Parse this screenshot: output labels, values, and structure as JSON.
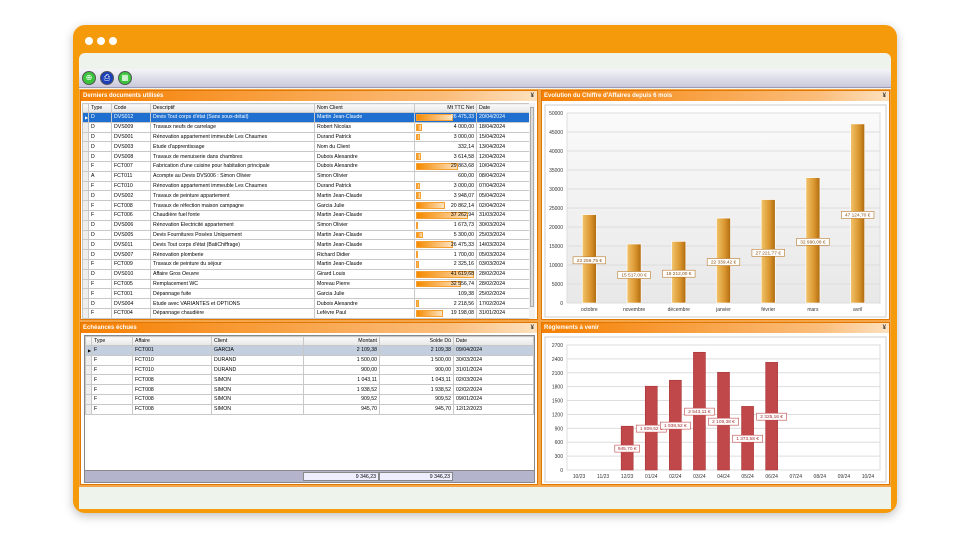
{
  "toolbar": {
    "icons": [
      "network-icon",
      "print-icon",
      "calculator-icon"
    ]
  },
  "docs": {
    "title": "Derniers documents utilisés",
    "columns": [
      "Type",
      "Code",
      "Descriptif",
      "Nom Client",
      "Mt TTC Net",
      "Date"
    ],
    "rows": [
      [
        "D",
        "DVS012",
        "Devis Tout corps d'état (Sans sous-détail)",
        "Martin Jean-Claude",
        "26 475,33",
        "20/04/2024"
      ],
      [
        "D",
        "DVS009",
        "Travaux neufs de carrelage",
        "Robert Nicolas",
        "4 000,00",
        "18/04/2024"
      ],
      [
        "D",
        "DVS001",
        "Rénovation appartement immeuble Les Chaumes",
        "Durand Patrick",
        "3 000,00",
        "15/04/2024"
      ],
      [
        "D",
        "DVS003",
        "Etude d'apprentissage",
        "Nom du Client",
        "332,14",
        "13/04/2024"
      ],
      [
        "D",
        "DVS008",
        "Travaux de menuiserie dans chambres",
        "Dubois Alexandre",
        "3 614,58",
        "12/04/2024"
      ],
      [
        "F",
        "FCT007",
        "Fabrication d'une cuisine pour habitation principale",
        "Dubois Alexandre",
        "29 863,68",
        "10/04/2024"
      ],
      [
        "A",
        "FCT011",
        "Acompte au Devis DVS006 : Simon Olivier",
        "Simon Olivier",
        "600,00",
        "08/04/2024"
      ],
      [
        "F",
        "FCT010",
        "Rénovation appartement immeuble Les Chaumes",
        "Durand Patrick",
        "3 000,00",
        "07/04/2024"
      ],
      [
        "D",
        "DVS002",
        "Travaux de peinture appartement",
        "Martin Jean-Claude",
        "3 948,07",
        "05/04/2024"
      ],
      [
        "F",
        "FCT008",
        "Travaux de réfection maison campagne",
        "Garcia Julie",
        "20 862,14",
        "02/04/2024"
      ],
      [
        "F",
        "FCT006",
        "Chaudière fuel fonte",
        "Martin Jean-Claude",
        "37 262,94",
        "31/03/2024"
      ],
      [
        "D",
        "DVS006",
        "Rénovation Electricité appartement",
        "Simon Olivier",
        "1 673,73",
        "30/03/2024"
      ],
      [
        "D",
        "DVS005",
        "Devis Fournitures Posées Uniquement",
        "Martin Jean-Claude",
        "5 300,00",
        "25/03/2024"
      ],
      [
        "D",
        "DVS011",
        "Devis Tout corps d'état (BatiChiffrage)",
        "Martin Jean-Claude",
        "26 475,33",
        "14/03/2024"
      ],
      [
        "D",
        "DVS007",
        "Rénovation plomberie",
        "Richard Didier",
        "1 700,00",
        "05/03/2024"
      ],
      [
        "F",
        "FCT009",
        "Travaux de peinture du séjour",
        "Martin Jean-Claude",
        "2 325,16",
        "03/03/2024"
      ],
      [
        "D",
        "DVS010",
        "Affaire Gros Oeuvre",
        "Girard Louis",
        "41 619,68",
        "28/02/2024"
      ],
      [
        "F",
        "FCT005",
        "Remplacement WC",
        "Moreau Pierre",
        "32 556,74",
        "28/02/2024"
      ],
      [
        "F",
        "FCT001",
        "Dépannage fuite",
        "Garcia Julie",
        "109,38",
        "25/02/2024"
      ],
      [
        "D",
        "DVS004",
        "Etude avec VARIANTES et OPTIONS",
        "Dubois Alexandre",
        "2 218,56",
        "17/02/2024"
      ],
      [
        "F",
        "FCT004",
        "Dépannage chaudière",
        "Lefèvre Paul",
        "19 198,08",
        "31/01/2024"
      ]
    ]
  },
  "echeances": {
    "title": "Echéances échues",
    "columns": [
      "Type",
      "Affaire",
      "Client",
      "Montant",
      "Solde Dû",
      "Date"
    ],
    "rows": [
      [
        "F",
        "FCT001",
        "GARCIA",
        "2 109,38",
        "2 109,38",
        "09/04/2024"
      ],
      [
        "F",
        "FCT010",
        "DURAND",
        "1 500,00",
        "1 500,00",
        "30/03/2024"
      ],
      [
        "F",
        "FCT010",
        "DURAND",
        "900,00",
        "900,00",
        "31/01/2024"
      ],
      [
        "F",
        "FCT008",
        "SIMON",
        "1 043,11",
        "1 043,11",
        "02/03/2024"
      ],
      [
        "F",
        "FCT008",
        "SIMON",
        "1 938,52",
        "1 938,52",
        "02/02/2024"
      ],
      [
        "F",
        "FCT008",
        "SIMON",
        "909,52",
        "909,52",
        "09/01/2024"
      ],
      [
        "F",
        "FCT008",
        "SIMON",
        "945,70",
        "945,70",
        "12/12/2023"
      ]
    ],
    "total_montant": "9 346,23",
    "total_solde": "9 346,23"
  },
  "chart_data": [
    {
      "type": "bar",
      "title": "Evolution du Chiffre d'Affaires depuis 6 mois",
      "color": "#d9952e",
      "categories": [
        "octobre",
        "novembre",
        "décembre",
        "janvier",
        "février",
        "mars",
        "avril"
      ],
      "values": [
        23259.75,
        15517.0,
        16212.0,
        22339.42,
        27221.77,
        32990.08,
        47124.7
      ],
      "labels": [
        "23 259,75 €",
        "15 517,00 €",
        "16 212,00 €",
        "22 339,42 €",
        "27 221,77 €",
        "32 990,08 €",
        "47 124,70 €"
      ],
      "ylim": [
        0,
        50000
      ],
      "yticks": [
        0,
        5000,
        10000,
        15000,
        20000,
        25000,
        30000,
        35000,
        40000,
        45000,
        50000
      ],
      "grid": true
    },
    {
      "type": "bar",
      "title": "Règlements à venir",
      "color": "#c0484a",
      "categories": [
        "10/23",
        "11/23",
        "12/23",
        "01/24",
        "02/24",
        "03/24",
        "04/24",
        "05/24",
        "06/24",
        "07/24",
        "08/24",
        "09/24",
        "10/24"
      ],
      "values": [
        0,
        0,
        945.7,
        1809.52,
        1938.52,
        2543.11,
        2109.38,
        1373.58,
        2325.16,
        0,
        0,
        0,
        0
      ],
      "labels": [
        "",
        "",
        "945,70 €",
        "1 809,52 €",
        "1 938,52 €",
        "2 543,11 €",
        "2 109,38 €",
        "1 373,58 €",
        "2 325,16 €",
        "",
        "",
        "",
        ""
      ],
      "ylim": [
        0,
        2700
      ],
      "yticks": [
        0,
        300,
        600,
        900,
        1200,
        1500,
        1800,
        2100,
        2400,
        2700
      ],
      "grid": true
    }
  ]
}
